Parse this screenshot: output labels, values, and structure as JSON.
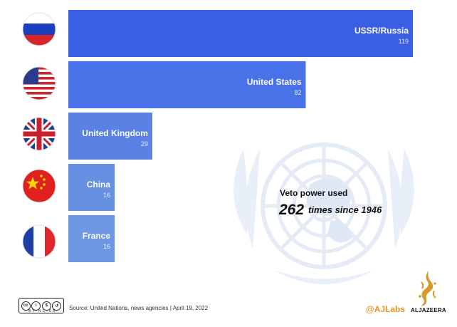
{
  "chart_data": {
    "type": "bar",
    "orientation": "horizontal",
    "categories": [
      "USSR/Russia",
      "United States",
      "United Kingdom",
      "China",
      "France"
    ],
    "values": [
      119,
      82,
      29,
      16,
      16
    ],
    "flag_icons": [
      "russia-flag-icon",
      "usa-flag-icon",
      "uk-flag-icon",
      "china-flag-icon",
      "france-flag-icon"
    ],
    "colors": [
      "#3a5fe5",
      "#4a72e8",
      "#5a82e4",
      "#6690e2",
      "#6d96e4"
    ],
    "annotation": {
      "line1": "Veto power used",
      "number": "262",
      "line2": "times since 1946"
    },
    "watermark_icon": "un-emblem-icon",
    "grid": false,
    "legend": "none"
  },
  "footer": {
    "license": "BY NC SA",
    "source": "Source: United Nations, news agencies | April 19, 2022",
    "handle": "@AJLabs",
    "brand": "ALJAZEERA"
  }
}
